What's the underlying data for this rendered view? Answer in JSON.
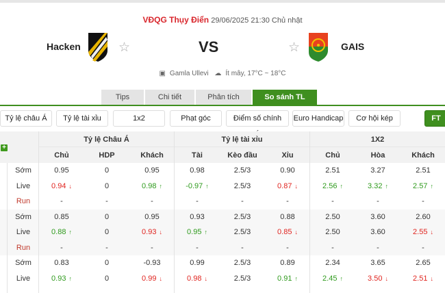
{
  "header": {
    "league": "VĐQG Thụy Điển",
    "datetime": "29/06/2025 21:30 Chủ nhật",
    "home": "Hacken",
    "away": "GAIS",
    "vs": "VS",
    "venue": "Gamla Ullevi",
    "weather": "Ít mây, 17°C ~ 18°C",
    "logo_home_text": "BK HACKEN",
    "colors": {
      "accent": "#3f8f1f",
      "league": "#d9262c",
      "up": "#2e9a1c",
      "down": "#e0241f"
    }
  },
  "tabs": [
    {
      "label": "Tips"
    },
    {
      "label": "Chi tiết"
    },
    {
      "label": "Phân tích"
    },
    {
      "label": "So sánh TL",
      "active": true
    }
  ],
  "filters": [
    "Tỷ lệ châu Á",
    "Tỷ lệ tài xỉu",
    "1x2",
    "Phạt góc",
    "Điểm số chính xác",
    "Euro Handicap",
    "Cơ hội kép",
    "FT"
  ],
  "table": {
    "groups": [
      "Tỷ lệ Châu Á",
      "Tỷ lệ tài xỉu",
      "1X2"
    ],
    "columns": [
      "Chủ",
      "HDP",
      "Khách",
      "Tài",
      "Kèo đầu",
      "Xỉu",
      "Chủ",
      "Hòa",
      "Khách"
    ],
    "expand_icon": "plus-icon",
    "blocks": [
      {
        "rows": [
          {
            "label": "Sớm",
            "cells": [
              {
                "v": "0.95"
              },
              {
                "v": "0"
              },
              {
                "v": "0.95"
              },
              {
                "v": "0.98"
              },
              {
                "v": "2.5/3"
              },
              {
                "v": "0.90"
              },
              {
                "v": "2.51"
              },
              {
                "v": "3.27"
              },
              {
                "v": "2.51"
              }
            ]
          },
          {
            "label": "Live",
            "cells": [
              {
                "v": "0.94",
                "d": "down"
              },
              {
                "v": "0"
              },
              {
                "v": "0.98",
                "d": "up"
              },
              {
                "v": "-0.97",
                "d": "up"
              },
              {
                "v": "2.5/3"
              },
              {
                "v": "0.87",
                "d": "down"
              },
              {
                "v": "2.56",
                "d": "up"
              },
              {
                "v": "3.32",
                "d": "up"
              },
              {
                "v": "2.57",
                "d": "up"
              }
            ]
          },
          {
            "label": "Run",
            "run": true,
            "cells": [
              {
                "v": "-"
              },
              {
                "v": "-"
              },
              {
                "v": "-"
              },
              {
                "v": "-"
              },
              {
                "v": "-"
              },
              {
                "v": "-"
              },
              {
                "v": "-"
              },
              {
                "v": "-"
              },
              {
                "v": "-"
              }
            ]
          }
        ]
      },
      {
        "rows": [
          {
            "label": "Sớm",
            "cells": [
              {
                "v": "0.85"
              },
              {
                "v": "0"
              },
              {
                "v": "0.95"
              },
              {
                "v": "0.93"
              },
              {
                "v": "2.5/3"
              },
              {
                "v": "0.88"
              },
              {
                "v": "2.50"
              },
              {
                "v": "3.60"
              },
              {
                "v": "2.60"
              }
            ]
          },
          {
            "label": "Live",
            "cells": [
              {
                "v": "0.88",
                "d": "up"
              },
              {
                "v": "0"
              },
              {
                "v": "0.93",
                "d": "down"
              },
              {
                "v": "0.95",
                "d": "up"
              },
              {
                "v": "2.5/3"
              },
              {
                "v": "0.85",
                "d": "down"
              },
              {
                "v": "2.50"
              },
              {
                "v": "3.60"
              },
              {
                "v": "2.55",
                "d": "down"
              }
            ]
          },
          {
            "label": "Run",
            "run": true,
            "cells": [
              {
                "v": "-"
              },
              {
                "v": "-"
              },
              {
                "v": "-"
              },
              {
                "v": "-"
              },
              {
                "v": "-"
              },
              {
                "v": "-"
              },
              {
                "v": "-"
              },
              {
                "v": "-"
              },
              {
                "v": "-"
              }
            ]
          }
        ]
      },
      {
        "rows": [
          {
            "label": "Sớm",
            "cells": [
              {
                "v": "0.83"
              },
              {
                "v": "0"
              },
              {
                "v": "-0.93"
              },
              {
                "v": "0.99"
              },
              {
                "v": "2.5/3"
              },
              {
                "v": "0.89"
              },
              {
                "v": "2.34"
              },
              {
                "v": "3.65"
              },
              {
                "v": "2.65"
              }
            ]
          },
          {
            "label": "Live",
            "cells": [
              {
                "v": "0.93",
                "d": "up"
              },
              {
                "v": "0"
              },
              {
                "v": "0.99",
                "d": "down"
              },
              {
                "v": "0.98",
                "d": "down"
              },
              {
                "v": "2.5/3"
              },
              {
                "v": "0.91",
                "d": "up"
              },
              {
                "v": "2.45",
                "d": "up"
              },
              {
                "v": "3.50",
                "d": "down"
              },
              {
                "v": "2.51",
                "d": "down"
              }
            ]
          }
        ]
      }
    ]
  }
}
